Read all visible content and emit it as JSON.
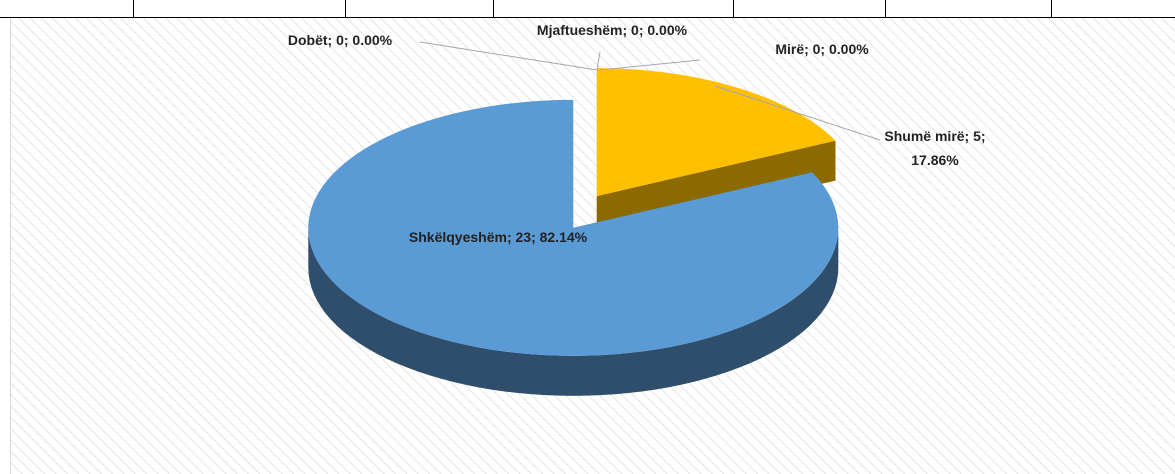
{
  "chart_data": {
    "type": "pie3d",
    "values": [
      0,
      0,
      0,
      5,
      23
    ],
    "value_labels": [
      "Dobët; 0; 0.00%",
      "Mjaftueshëm; 0; 0.00%",
      "Mirë; 0; 0.00%",
      "Shumë mirë; 5; 17.86%",
      "Shkëlqyeshëm; 23; 82.14%"
    ],
    "colors": [
      "#a5a5a5",
      "#ed7d31",
      "#70ad47",
      "#ffc000",
      "#5b9bd5"
    ]
  }
}
